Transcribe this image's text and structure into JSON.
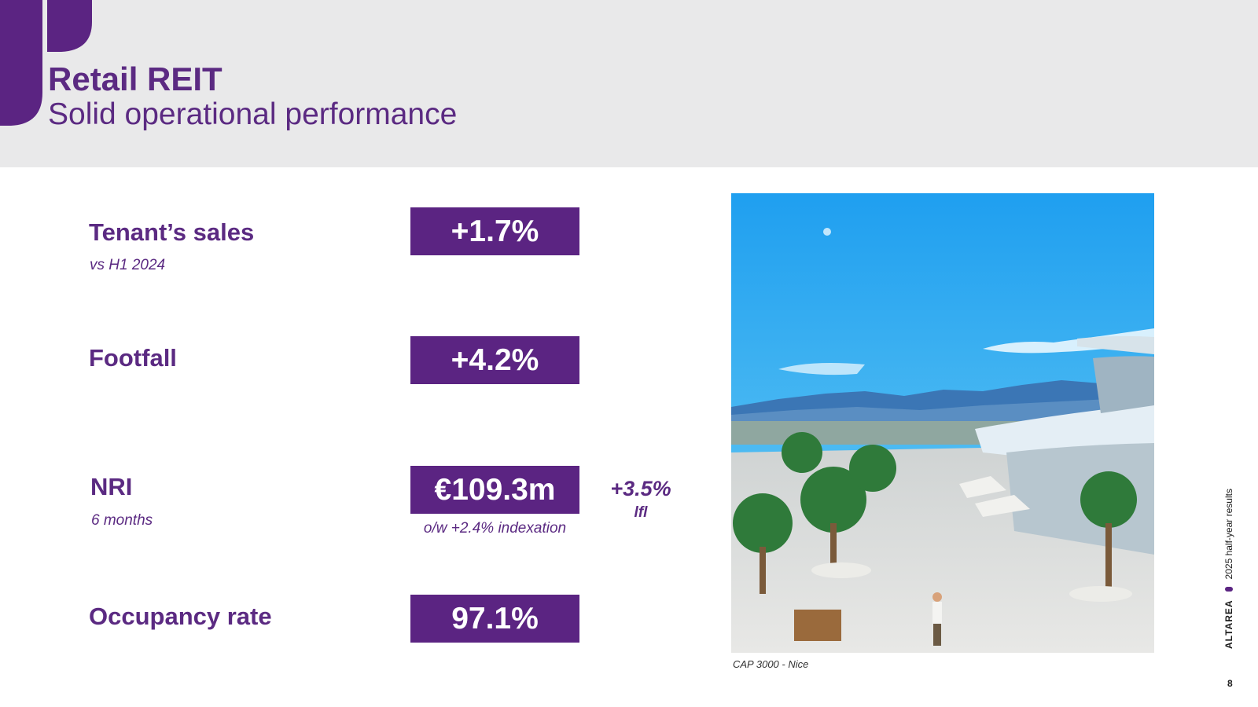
{
  "header": {
    "title": "Retail REIT",
    "subtitle": "Solid operational performance"
  },
  "kpis": [
    {
      "label": "Tenant’s sales",
      "note": "vs H1 2024",
      "value": "+1.7%"
    },
    {
      "label": "Footfall",
      "value": "+4.2%"
    },
    {
      "label": "NRI",
      "note": "6 months",
      "value": "€109.3m",
      "sub": "o/w +2.4% indexation",
      "lfl_value": "+3.5%",
      "lfl_label": "lfl"
    },
    {
      "label": "Occupancy rate",
      "value": "97.1%"
    }
  ],
  "photo": {
    "caption": "CAP 3000 - Nice"
  },
  "footer": {
    "brand": "ALTAREA",
    "report": "2025 half-year results",
    "page_number": "8"
  },
  "colors": {
    "brand_purple": "#5b2482",
    "header_bg": "#e9e9ea"
  }
}
